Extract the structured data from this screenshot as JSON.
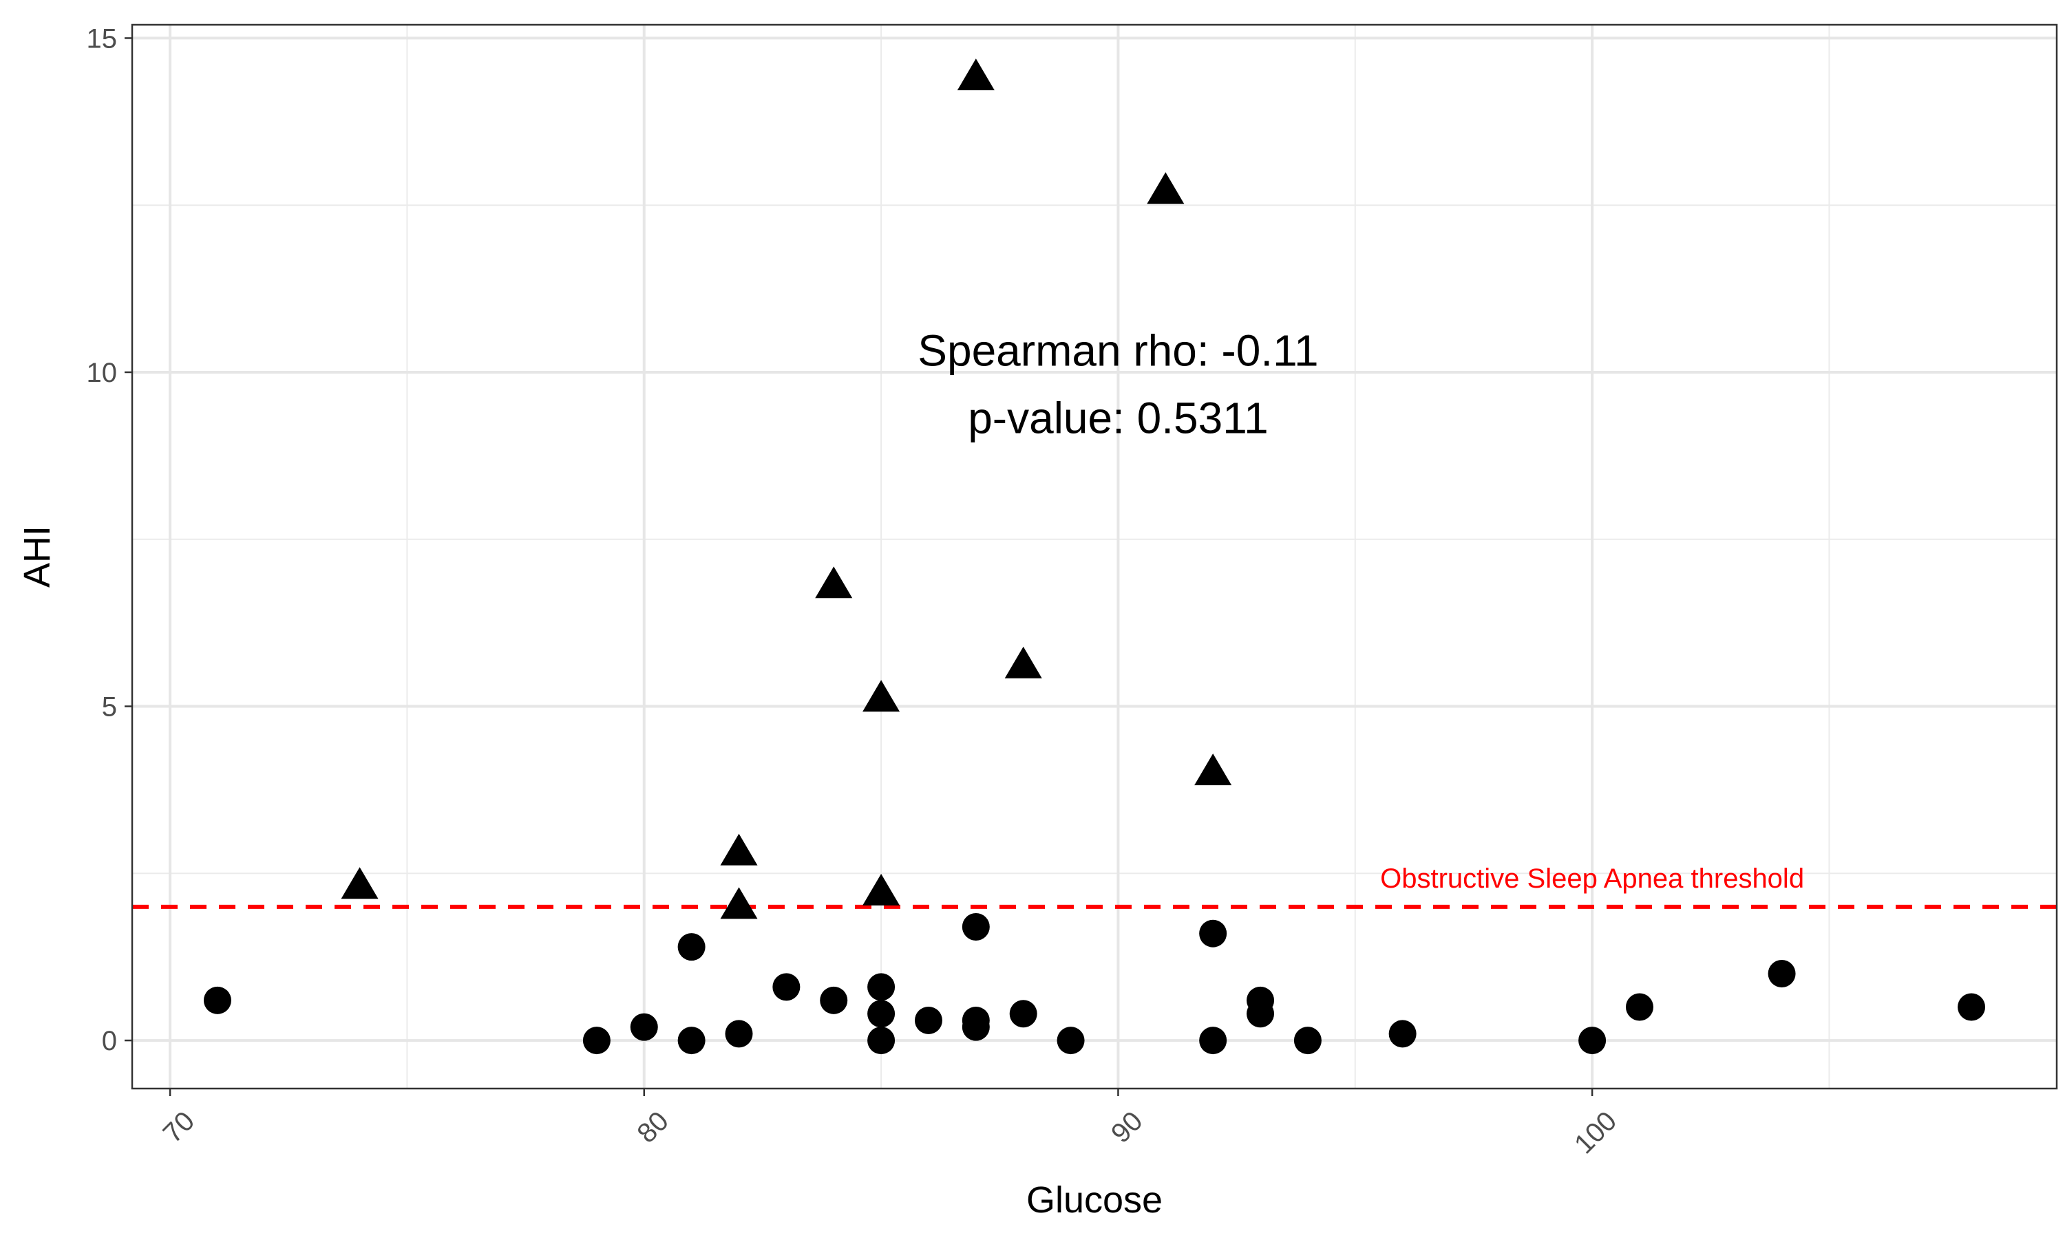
{
  "chart_data": {
    "type": "scatter",
    "xlabel": "Glucose",
    "ylabel": "AHI",
    "xlim": [
      69.2,
      109.8
    ],
    "ylim": [
      -0.72,
      15.2
    ],
    "x_ticks": [
      70,
      80,
      90,
      100
    ],
    "x_tick_labels": [
      "70",
      "80",
      "90",
      "100"
    ],
    "x_minor_ticks": [
      75,
      85,
      95,
      105
    ],
    "y_ticks": [
      0,
      5,
      10,
      15
    ],
    "y_tick_labels": [
      "0",
      "5",
      "10",
      "15"
    ],
    "y_minor_ticks": [
      2.5,
      7.5,
      12.5
    ],
    "grid": true,
    "annotation": {
      "lines": [
        "Spearman rho: -0.11",
        "p-value: 0.5311"
      ],
      "x": 90,
      "y": 9.5
    },
    "threshold": {
      "value": 2,
      "label": "Obstructive Sleep Apnea threshold",
      "color": "#ff0000",
      "linestyle": "dashed",
      "label_x": 100
    },
    "series": [
      {
        "marker": "circle",
        "color": "#000000",
        "points": [
          [
            71,
            0.6
          ],
          [
            79,
            0.0
          ],
          [
            80,
            0.2
          ],
          [
            81,
            1.4
          ],
          [
            81,
            0.0
          ],
          [
            82,
            0.1
          ],
          [
            83,
            0.8
          ],
          [
            84,
            0.6
          ],
          [
            85,
            0.8
          ],
          [
            85,
            0.4
          ],
          [
            85,
            0.0
          ],
          [
            86,
            0.3
          ],
          [
            87,
            1.7
          ],
          [
            87,
            0.3
          ],
          [
            87,
            0.2
          ],
          [
            88,
            0.4
          ],
          [
            89,
            0.0
          ],
          [
            92,
            1.6
          ],
          [
            92,
            0.0
          ],
          [
            93,
            0.6
          ],
          [
            93,
            0.4
          ],
          [
            94,
            0.0
          ],
          [
            96,
            0.1
          ],
          [
            100,
            0.0
          ],
          [
            101,
            0.5
          ],
          [
            104,
            1.0
          ],
          [
            108,
            0.5
          ]
        ]
      },
      {
        "marker": "triangle",
        "color": "#000000",
        "points": [
          [
            74,
            2.3
          ],
          [
            82,
            2.8
          ],
          [
            82,
            2.0
          ],
          [
            84,
            6.8
          ],
          [
            85,
            5.1
          ],
          [
            85,
            2.2
          ],
          [
            87,
            14.4
          ],
          [
            88,
            5.6
          ],
          [
            91,
            12.7
          ],
          [
            92,
            4.0
          ]
        ]
      }
    ]
  }
}
